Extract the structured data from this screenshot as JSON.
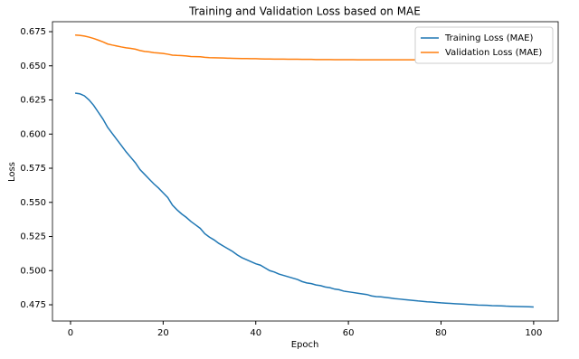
{
  "chart_data": {
    "type": "line",
    "title": "Training and Validation Loss based on MAE",
    "x_label": "Epoch",
    "y_label": "Loss",
    "x": [
      1,
      2,
      3,
      4,
      5,
      6,
      7,
      8,
      9,
      10,
      11,
      12,
      13,
      14,
      15,
      16,
      17,
      18,
      19,
      20,
      21,
      22,
      23,
      24,
      25,
      26,
      27,
      28,
      29,
      30,
      31,
      32,
      33,
      34,
      35,
      36,
      37,
      38,
      39,
      40,
      41,
      42,
      43,
      44,
      45,
      46,
      47,
      48,
      49,
      50,
      51,
      52,
      53,
      54,
      55,
      56,
      57,
      58,
      59,
      60,
      61,
      62,
      63,
      64,
      65,
      66,
      67,
      68,
      69,
      70,
      71,
      72,
      73,
      74,
      75,
      76,
      77,
      78,
      79,
      80,
      81,
      82,
      83,
      84,
      85,
      86,
      87,
      88,
      89,
      90,
      91,
      92,
      93,
      94,
      95,
      96,
      97,
      98,
      99,
      100
    ],
    "series": [
      {
        "name": "Training Loss (MAE)",
        "color": "#1f77b4",
        "values": [
          0.63,
          0.6295,
          0.628,
          0.625,
          0.621,
          0.616,
          0.611,
          0.605,
          0.6005,
          0.596,
          0.5915,
          0.587,
          0.583,
          0.579,
          0.574,
          0.5705,
          0.567,
          0.5635,
          0.5605,
          0.557,
          0.5535,
          0.548,
          0.5445,
          0.5415,
          0.539,
          0.536,
          0.5335,
          0.531,
          0.527,
          0.5245,
          0.5225,
          0.52,
          0.518,
          0.516,
          0.514,
          0.5115,
          0.5095,
          0.508,
          0.5065,
          0.505,
          0.504,
          0.502,
          0.5,
          0.499,
          0.4975,
          0.4965,
          0.4955,
          0.4945,
          0.4935,
          0.492,
          0.491,
          0.4905,
          0.4895,
          0.489,
          0.488,
          0.4875,
          0.4865,
          0.486,
          0.485,
          0.4845,
          0.484,
          0.4835,
          0.483,
          0.4825,
          0.4815,
          0.481,
          0.4808,
          0.4804,
          0.48,
          0.4795,
          0.4792,
          0.4788,
          0.4785,
          0.4782,
          0.4778,
          0.4775,
          0.4772,
          0.477,
          0.4767,
          0.4764,
          0.4762,
          0.476,
          0.4758,
          0.4756,
          0.4754,
          0.4752,
          0.475,
          0.4748,
          0.4747,
          0.4746,
          0.4744,
          0.4743,
          0.4742,
          0.474,
          0.4739,
          0.4738,
          0.4737,
          0.4736,
          0.4735,
          0.4734
        ]
      },
      {
        "name": "Validation Loss (MAE)",
        "color": "#ff7f0e",
        "values": [
          0.6725,
          0.6723,
          0.6718,
          0.671,
          0.67,
          0.6688,
          0.6675,
          0.666,
          0.6652,
          0.6645,
          0.6638,
          0.6632,
          0.6628,
          0.6622,
          0.6612,
          0.6605,
          0.6602,
          0.6596,
          0.6594,
          0.659,
          0.6585,
          0.6578,
          0.6576,
          0.6575,
          0.6572,
          0.6568,
          0.6567,
          0.6566,
          0.6562,
          0.656,
          0.6559,
          0.6558,
          0.6557,
          0.6556,
          0.6555,
          0.6554,
          0.6553,
          0.6553,
          0.6552,
          0.6552,
          0.6551,
          0.655,
          0.655,
          0.6549,
          0.6549,
          0.6549,
          0.6548,
          0.6548,
          0.6548,
          0.6547,
          0.6547,
          0.6547,
          0.6546,
          0.6546,
          0.6546,
          0.6546,
          0.6545,
          0.6545,
          0.6545,
          0.6545,
          0.6545,
          0.6544,
          0.6544,
          0.6544,
          0.6544,
          0.6544,
          0.6544,
          0.6544,
          0.6544,
          0.6544,
          0.6544,
          0.6544,
          0.6544,
          0.6544,
          0.6544,
          0.6544,
          0.6544,
          0.6544,
          0.6544,
          0.6544,
          0.6543,
          0.6543,
          0.6543,
          0.6543,
          0.6543,
          0.6543,
          0.6543,
          0.6543,
          0.6543,
          0.6543,
          0.6543,
          0.6543,
          0.6543,
          0.6543,
          0.6543,
          0.6543,
          0.6543,
          0.6543,
          0.6543,
          0.6543
        ]
      }
    ],
    "xlim": [
      -3.9,
      105.3
    ],
    "ylim": [
      0.4631,
      0.6823
    ],
    "xticks": [
      0,
      20,
      40,
      60,
      80,
      100
    ],
    "yticks": [
      0.475,
      {
        "value": 0.5,
        "label": "0.500"
      },
      0.525,
      {
        "value": 0.55,
        "label": "0.550"
      },
      0.575,
      {
        "value": 0.6,
        "label": "0.600"
      },
      0.625,
      {
        "value": 0.65,
        "label": "0.650"
      },
      0.675
    ],
    "grid": false,
    "legend": "upper right"
  }
}
